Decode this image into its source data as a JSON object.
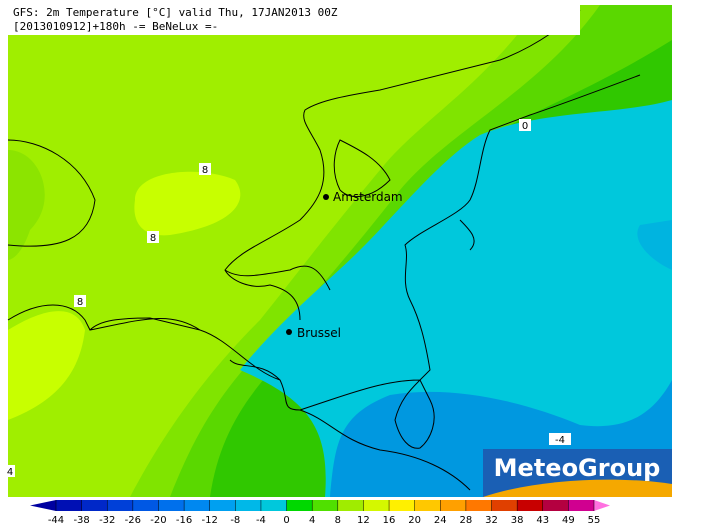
{
  "header": {
    "title": "GFS: 2m Temperature [°C] valid Thu, 17JAN2013 00Z",
    "subtitle": "[2013010912]+180h -= BeNeLux =-"
  },
  "cities": [
    {
      "label": "Amsterdam"
    },
    {
      "label": "Brussel"
    }
  ],
  "contour_labels": [
    "8",
    "8",
    "8",
    "0",
    "-4",
    "4"
  ],
  "logo": "MeteoGroup",
  "colorbar": {
    "ticks": [
      -44,
      -38,
      -32,
      -26,
      -20,
      -16,
      -12,
      -8,
      -4,
      0,
      4,
      8,
      12,
      16,
      20,
      24,
      28,
      32,
      38,
      43,
      49,
      55
    ],
    "colors": [
      "#0000a0",
      "#0010b4",
      "#0028c8",
      "#0040d8",
      "#0058e4",
      "#0070ec",
      "#0088f0",
      "#00a0f0",
      "#00b8e8",
      "#00c8dc",
      "#00d800",
      "#50e000",
      "#a0ec00",
      "#d4f800",
      "#fff000",
      "#ffc800",
      "#ffa000",
      "#ff7800",
      "#e04000",
      "#c80000",
      "#b40040",
      "#d00090",
      "#ff70e0"
    ]
  }
}
